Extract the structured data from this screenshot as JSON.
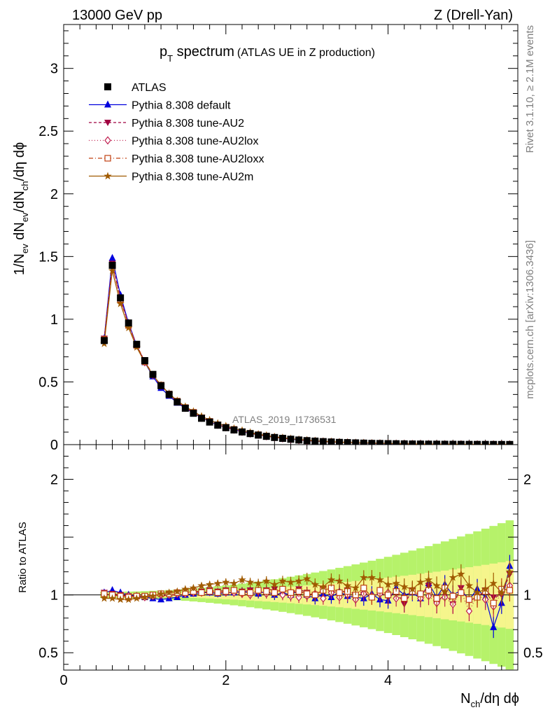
{
  "header": {
    "left": "13000 GeV pp",
    "right": "Z (Drell-Yan)"
  },
  "side_labels": {
    "rivet": "Rivet 3.1.10, ≥ 2.1M events",
    "mcplots": "mcplots.cern.ch [arXiv:1306.3436]"
  },
  "chart_data": {
    "type": "scatter",
    "title_main": "p",
    "title_sub": "T",
    "title_rest": " spectrum",
    "title_note": "(ATLAS UE in Z production)",
    "watermark": "ATLAS_2019_I1736531",
    "xlabel": {
      "a": "N",
      "b": "ch",
      "c": "/dη dϕ"
    },
    "ylabel_main": {
      "a": "1/N",
      "b": "ev",
      "c": " dN",
      "d": "ev",
      "e": "/dN",
      "f": "ch",
      "g": "/dη dϕ"
    },
    "ylabel_ratio": "Ratio to ATLAS",
    "xlim": [
      0,
      5.6
    ],
    "ylim_main": [
      0,
      3.35
    ],
    "ylim_ratio": [
      0.35,
      2.3
    ],
    "x_ticks": [
      {
        "v": 0,
        "label": "0"
      },
      {
        "v": 2,
        "label": "2"
      },
      {
        "v": 4,
        "label": "4"
      }
    ],
    "y_ticks_main": [
      {
        "v": 0,
        "label": "0"
      },
      {
        "v": 0.5,
        "label": "0.5"
      },
      {
        "v": 1,
        "label": "1"
      },
      {
        "v": 1.5,
        "label": "1.5"
      },
      {
        "v": 2,
        "label": "2"
      },
      {
        "v": 2.5,
        "label": "2.5"
      },
      {
        "v": 3,
        "label": "3"
      }
    ],
    "y_ticks_ratio": [
      {
        "v": 0.5,
        "label": "0.5"
      },
      {
        "v": 1,
        "label": "1"
      },
      {
        "v": 2,
        "label": "2"
      }
    ],
    "x": [
      0.5,
      0.6,
      0.7,
      0.8,
      0.9,
      1.0,
      1.1,
      1.2,
      1.3,
      1.4,
      1.5,
      1.6,
      1.7,
      1.8,
      1.9,
      2.0,
      2.1,
      2.2,
      2.3,
      2.4,
      2.5,
      2.6,
      2.7,
      2.8,
      2.9,
      3.0,
      3.1,
      3.2,
      3.3,
      3.4,
      3.5,
      3.6,
      3.7,
      3.8,
      3.9,
      4.0,
      4.1,
      4.2,
      4.3,
      4.4,
      4.5,
      4.6,
      4.7,
      4.8,
      4.9,
      5.0,
      5.1,
      5.2,
      5.3,
      5.4,
      5.5
    ],
    "data_values": [
      0.83,
      1.43,
      1.17,
      0.97,
      0.8,
      0.67,
      0.56,
      0.47,
      0.4,
      0.34,
      0.29,
      0.25,
      0.21,
      0.18,
      0.155,
      0.135,
      0.117,
      0.101,
      0.088,
      0.076,
      0.066,
      0.057,
      0.05,
      0.043,
      0.037,
      0.032,
      0.028,
      0.024,
      0.021,
      0.018,
      0.016,
      0.014,
      0.012,
      0.01,
      0.009,
      0.008,
      0.007,
      0.006,
      0.005,
      0.0045,
      0.004,
      0.0035,
      0.003,
      0.0027,
      0.0024,
      0.0021,
      0.0019,
      0.0017,
      0.0015,
      0.0013,
      0.0012
    ],
    "band_color": "#b6f26a",
    "band_inner_color": "#f5f58c",
    "legend_position": "top-left",
    "data_series_name": "ATLAS",
    "series": [
      {
        "name": "Pythia 8.308 default",
        "color": "#0000dd",
        "marker": "triangle-up",
        "dash": "",
        "ratio": [
          1.02,
          1.04,
          1.02,
          1.0,
          0.99,
          0.98,
          0.97,
          0.96,
          0.97,
          0.98,
          1.0,
          1.01,
          1.02,
          1.02,
          1.01,
          1.02,
          1.02,
          1.03,
          1.02,
          1.01,
          1.03,
          1.0,
          1.02,
          1.0,
          1.04,
          1.0,
          0.97,
          1.01,
          0.98,
          1.03,
          0.99,
          0.98,
          0.97,
          1.01,
          0.96,
          0.95,
          1.06,
          1.0,
          1.02,
          0.97,
          1.1,
          0.98,
          1.09,
          1.0,
          1.04,
          0.96,
          1.05,
          0.98,
          0.72,
          0.93,
          1.25
        ]
      },
      {
        "name": "Pythia 8.308 tune-AU2",
        "color": "#a00040",
        "marker": "triangle-down",
        "dash": "4,3",
        "ratio": [
          1.02,
          1.01,
          1.0,
          0.99,
          0.99,
          0.99,
          0.99,
          0.99,
          1.0,
          1.0,
          1.02,
          1.03,
          1.03,
          1.04,
          1.03,
          1.04,
          1.04,
          1.03,
          1.04,
          1.02,
          1.04,
          1.05,
          1.03,
          1.02,
          1.05,
          1.02,
          1.0,
          1.05,
          1.03,
          1.02,
          1.04,
          1.0,
          1.03,
          0.98,
          1.02,
          0.98,
          1.03,
          0.92,
          1.04,
          0.99,
          1.08,
          0.92,
          1.02,
          0.92,
          1.06,
          0.95,
          0.98,
          1.04,
          0.98,
          1.0,
          1.18
        ]
      },
      {
        "name": "Pythia 8.308 tune-AU2lox",
        "color": "#c02050",
        "marker": "diamond-open",
        "dash": "1,3",
        "ratio": [
          1.01,
          1.0,
          0.99,
          0.99,
          0.99,
          0.98,
          0.99,
          1.0,
          1.0,
          1.01,
          1.01,
          1.02,
          1.02,
          1.03,
          1.02,
          1.02,
          1.02,
          1.01,
          1.0,
          1.03,
          1.01,
          1.02,
          1.0,
          0.99,
          0.98,
          0.99,
          1.01,
          0.97,
          1.02,
          0.98,
          1.0,
          0.96,
          1.01,
          0.99,
          1.01,
          1.02,
          0.97,
          0.98,
          1.04,
          0.97,
          0.99,
          0.93,
          0.98,
          0.92,
          1.03,
          0.86,
          1.0,
          0.96,
          0.9,
          1.02,
          1.08
        ]
      },
      {
        "name": "Pythia 8.308 tune-AU2loxx",
        "color": "#c04010",
        "marker": "square-open",
        "dash": "6,3,1,3",
        "ratio": [
          1.01,
          1.0,
          0.99,
          0.98,
          0.99,
          0.99,
          1.0,
          1.01,
          1.01,
          1.02,
          1.02,
          1.03,
          1.02,
          1.03,
          1.02,
          1.03,
          1.04,
          1.02,
          1.02,
          1.04,
          1.03,
          1.02,
          1.05,
          1.02,
          1.03,
          1.01,
          1.0,
          1.04,
          1.06,
          1.02,
          1.03,
          1.0,
          1.06,
          0.98,
          1.04,
          1.0,
          1.03,
          0.97,
          1.03,
          1.01,
          1.04,
          0.97,
          1.06,
          0.99,
          1.02,
          0.96,
          0.98,
          1.03,
          0.93,
          1.05,
          1.04
        ]
      },
      {
        "name": "Pythia 8.308 tune-AU2m",
        "color": "#a05a00",
        "marker": "star",
        "dash": "",
        "ratio": [
          0.97,
          0.97,
          0.96,
          0.96,
          0.97,
          0.98,
          0.99,
          1.01,
          1.02,
          1.03,
          1.05,
          1.06,
          1.08,
          1.09,
          1.1,
          1.11,
          1.1,
          1.13,
          1.11,
          1.1,
          1.12,
          1.09,
          1.12,
          1.11,
          1.12,
          1.14,
          1.09,
          1.07,
          1.13,
          1.12,
          1.08,
          1.06,
          1.15,
          1.15,
          1.13,
          1.09,
          1.1,
          1.07,
          1.05,
          1.11,
          1.13,
          1.08,
          1.03,
          1.15,
          1.18,
          1.08,
          1.02,
          1.05,
          1.1,
          1.02,
          1.2
        ]
      }
    ]
  }
}
